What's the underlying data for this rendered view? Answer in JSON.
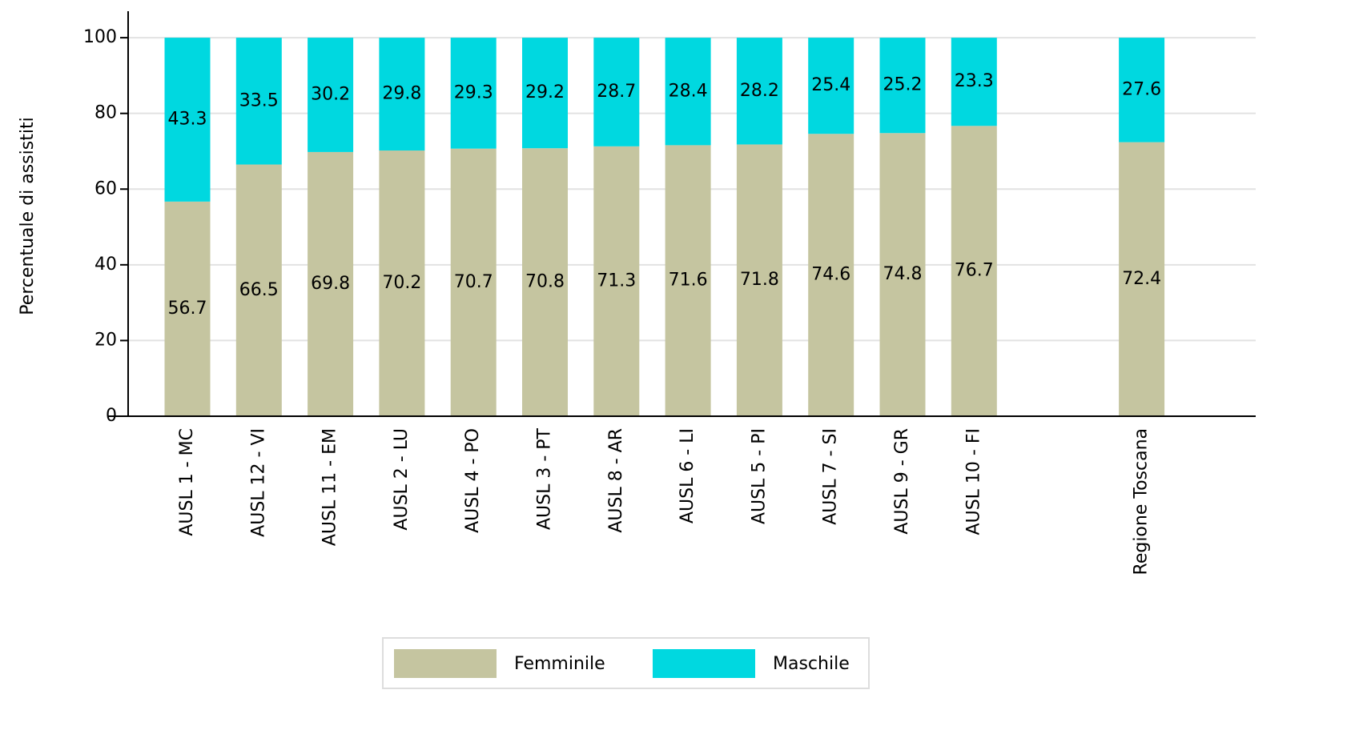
{
  "chart_data": {
    "type": "stacked_bar",
    "y_axis_label": "Percentuale di assistiti",
    "categories": [
      "AUSL 1 - MC",
      "AUSL 12 - VI",
      "AUSL 11 - EM",
      "AUSL 2 - LU",
      "AUSL 4 - PO",
      "AUSL 3 - PT",
      "AUSL 8 - AR",
      "AUSL 6 - LI",
      "AUSL 5 - PI",
      "AUSL 7 - SI",
      "AUSL 9 - GR",
      "AUSL 10 - FI",
      "Regione Toscana"
    ],
    "series": [
      {
        "name": "Femminile",
        "color": "#c5c5a0",
        "values": [
          56.7,
          66.5,
          69.8,
          70.2,
          70.7,
          70.8,
          71.3,
          71.6,
          71.8,
          74.6,
          74.8,
          76.7,
          72.4
        ]
      },
      {
        "name": "Maschile",
        "color": "#00d8e0",
        "values": [
          43.3,
          33.5,
          30.2,
          29.8,
          29.3,
          29.2,
          28.7,
          28.4,
          28.2,
          25.4,
          25.2,
          23.3,
          27.6
        ]
      }
    ],
    "ylim": [
      0,
      107
    ],
    "yticks": [
      0,
      20,
      40,
      60,
      80,
      100
    ],
    "grid": true,
    "legend": "bottom"
  }
}
